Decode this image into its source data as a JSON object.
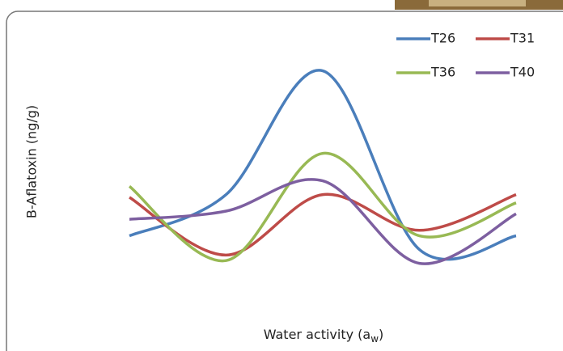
{
  "chart_data": {
    "type": "line",
    "y_label": "B-Aflatoxin (ng/g)",
    "x_label": [
      "Water activity (a",
      "w",
      ")"
    ],
    "categories": [
      null,
      null,
      null,
      null,
      null
    ],
    "ylim": [
      0,
      100
    ],
    "smooth": true,
    "legend": "top-right",
    "series": [
      {
        "name": "T26",
        "color": "#4a7ebb",
        "values": [
          26,
          41,
          86,
          21,
          26
        ]
      },
      {
        "name": "T31",
        "color": "#be4b48",
        "values": [
          40,
          19,
          41,
          28,
          41
        ]
      },
      {
        "name": "T36",
        "color": "#98b954",
        "values": [
          44,
          17,
          56,
          26,
          38
        ]
      },
      {
        "name": "T40",
        "color": "#7d5fa0",
        "values": [
          32,
          35,
          46,
          16,
          34
        ]
      }
    ]
  }
}
